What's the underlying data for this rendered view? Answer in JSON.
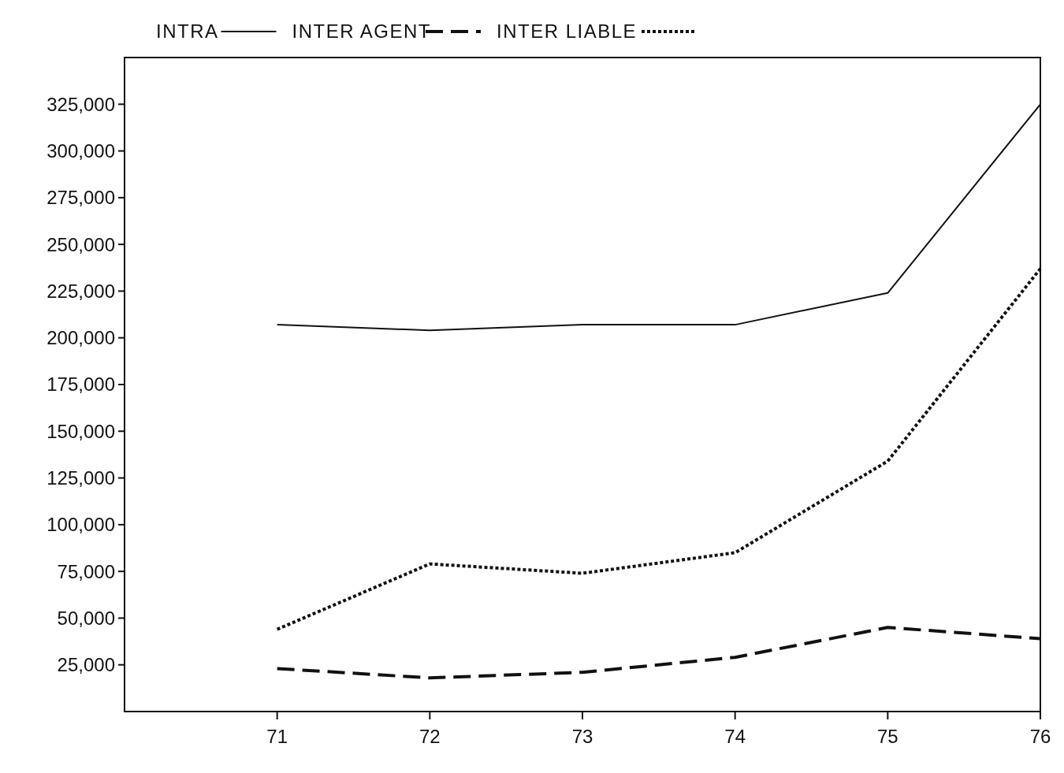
{
  "chart_data": {
    "type": "line",
    "x": [
      71,
      72,
      73,
      74,
      75,
      76
    ],
    "xlim": [
      70,
      76
    ],
    "xticks": [
      71,
      72,
      73,
      74,
      75,
      76
    ],
    "ylim": [
      0,
      350000
    ],
    "yticks": [
      {
        "value": 25000,
        "label": "25,000"
      },
      {
        "value": 50000,
        "label": "50,000"
      },
      {
        "value": 75000,
        "label": "75,000"
      },
      {
        "value": 100000,
        "label": "100,000"
      },
      {
        "value": 125000,
        "label": "125,000"
      },
      {
        "value": 150000,
        "label": "150,000"
      },
      {
        "value": 175000,
        "label": "175,000"
      },
      {
        "value": 200000,
        "label": "200,000"
      },
      {
        "value": 225000,
        "label": "225,000"
      },
      {
        "value": 250000,
        "label": "250,000"
      },
      {
        "value": 275000,
        "label": "275,000"
      },
      {
        "value": 300000,
        "label": "300,000"
      },
      {
        "value": 325000,
        "label": "325,000"
      }
    ],
    "legend": "top",
    "grid": false,
    "series": [
      {
        "name": "INTRA",
        "color": "#111111",
        "line_style": "solid",
        "values": [
          207000,
          204000,
          207000,
          207000,
          224000,
          325000
        ]
      },
      {
        "name": "INTER AGENT",
        "color": "#111111",
        "line_style": "dashed",
        "values": [
          23000,
          18000,
          21000,
          29000,
          45000,
          39000
        ]
      },
      {
        "name": "INTER LIABLE",
        "color": "#111111",
        "line_style": "dotted",
        "values": [
          44000,
          79000,
          74000,
          85000,
          134000,
          237000
        ]
      }
    ]
  }
}
